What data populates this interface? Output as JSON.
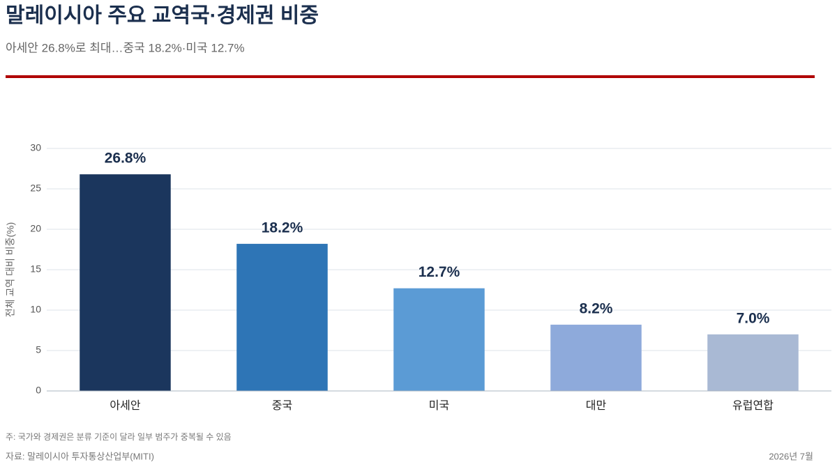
{
  "chart_data": {
    "type": "bar",
    "title": "말레이시아 주요 교역국·경제권 비중",
    "subtitle": "아세안 26.8%로 최대…중국 18.2%·미국 12.7%",
    "y_label": "전체 교역 대비 비중(%)",
    "categories": [
      "아세안",
      "중국",
      "미국",
      "대만",
      "유럽연합"
    ],
    "values": [
      26.8,
      18.2,
      12.7,
      8.2,
      7.0
    ],
    "value_labels": [
      "26.8%",
      "18.2%",
      "12.7%",
      "8.2%",
      "7.0%"
    ],
    "colors": [
      "#1b365d",
      "#2e75b6",
      "#5b9bd5",
      "#8eaadb",
      "#a9b9d4"
    ],
    "ylim": [
      0,
      30
    ],
    "yticks": [
      0,
      5,
      10,
      15,
      20,
      25,
      30
    ],
    "grid": true,
    "note": "주: 국가와 경제권은 분류 기준이 달라 일부 범주가 중복될 수 있음",
    "source": "자료: 말레이시아 투자통상산업부(MITI)",
    "date": "2026년 7월"
  }
}
